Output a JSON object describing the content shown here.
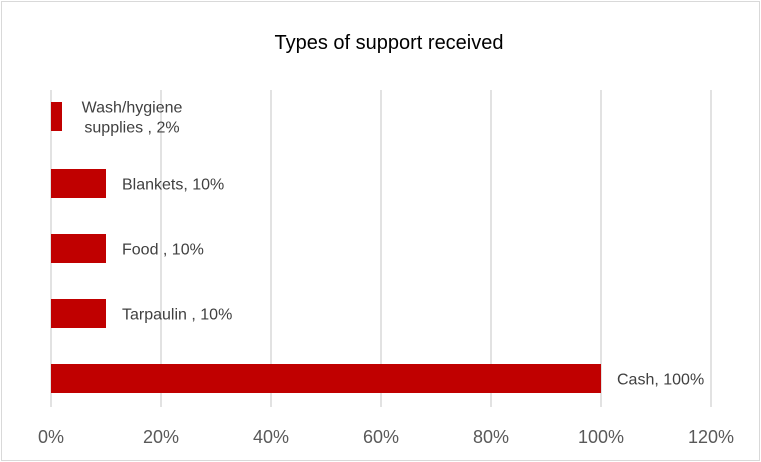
{
  "chart_data": {
    "type": "bar",
    "orientation": "horizontal",
    "title": "Types of support received",
    "categories": [
      "Wash/hygiene supplies",
      "Blankets",
      "Food",
      "Tarpaulin",
      "Cash"
    ],
    "values": [
      2,
      10,
      10,
      10,
      100
    ],
    "data_labels": [
      [
        "Wash/hygiene",
        "supplies , 2%"
      ],
      [
        "Blankets, 10%"
      ],
      [
        "Food , 10%"
      ],
      [
        " Tarpaulin , 10%"
      ],
      [
        "Cash, 100%"
      ]
    ],
    "xlim": [
      0,
      120
    ],
    "x_ticks": [
      "0%",
      "20%",
      "40%",
      "60%",
      "80%",
      "100%",
      "120%"
    ],
    "grid": "vertical",
    "legend": "none",
    "bar_color": "#c00000"
  }
}
